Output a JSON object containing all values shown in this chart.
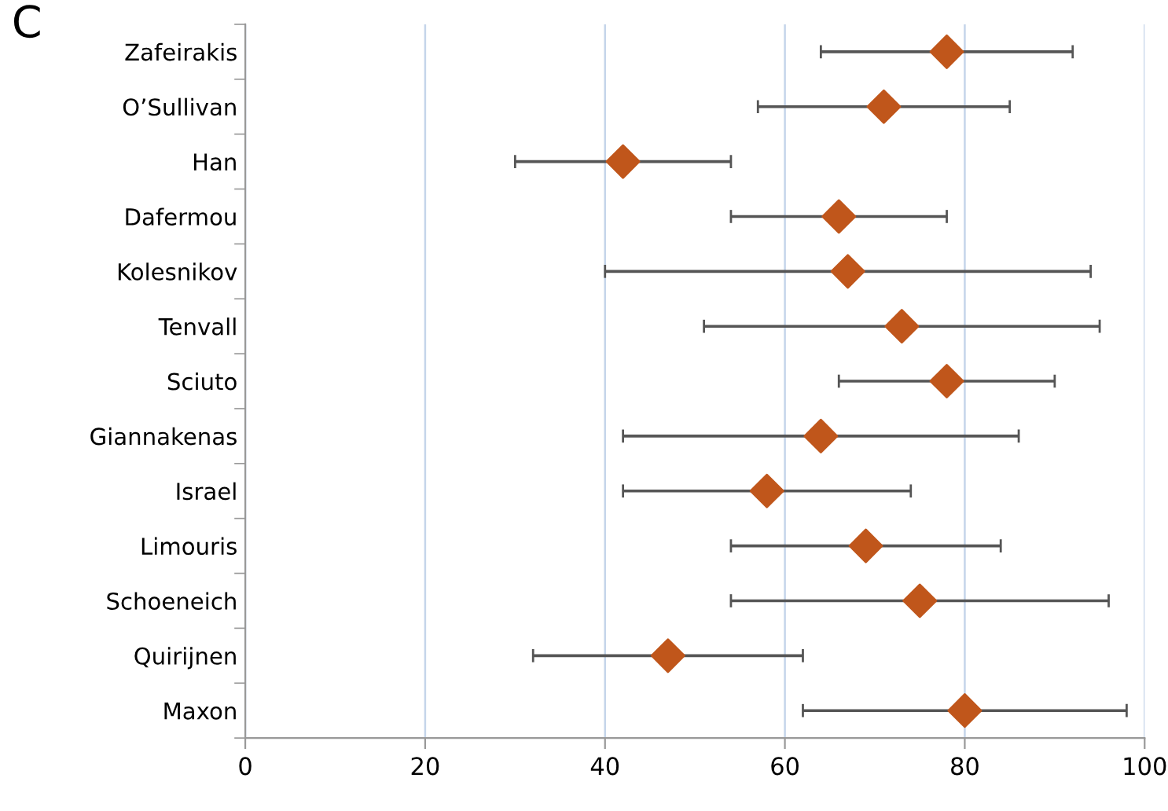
{
  "chart_data": {
    "type": "scatter",
    "title": "C",
    "categories": [
      "Zafeirakis",
      "O’Sullivan",
      "Han",
      "Dafermou",
      "Kolesnikov",
      "Tenvall",
      "Sciuto",
      "Giannakenas",
      "Israel",
      "Limouris",
      "Schoeneich",
      "Quirijnen",
      "Maxon"
    ],
    "values": [
      78,
      71,
      42,
      66,
      67,
      73,
      78,
      64,
      58,
      69,
      75,
      47,
      80
    ],
    "errors": [
      [
        64,
        92
      ],
      [
        57,
        85
      ],
      [
        30,
        54
      ],
      [
        54,
        78
      ],
      [
        40,
        94
      ],
      [
        51,
        95
      ],
      [
        66,
        90
      ],
      [
        42,
        86
      ],
      [
        42,
        74
      ],
      [
        54,
        84
      ],
      [
        54,
        96
      ],
      [
        32,
        62
      ],
      [
        62,
        98
      ]
    ],
    "orientation": "horizontal",
    "color": "#c0561b",
    "marker": "diamond",
    "xlim": [
      0,
      100
    ],
    "xticks": [
      0,
      20,
      40,
      60,
      80,
      100
    ],
    "grid": "x"
  }
}
